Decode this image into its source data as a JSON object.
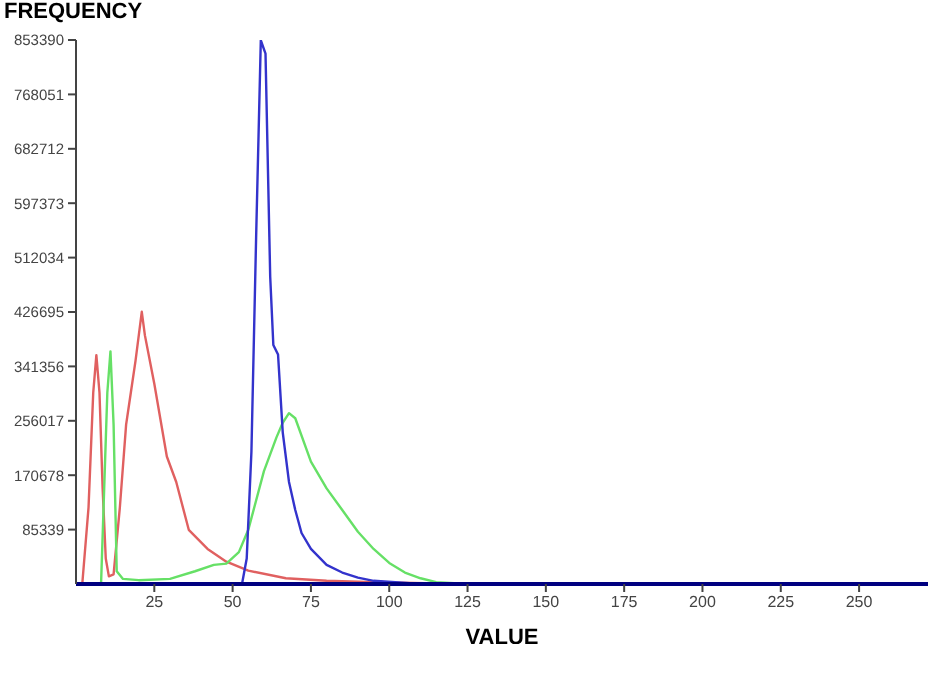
{
  "chart_data": {
    "type": "line",
    "ylabel": "FREQUENCY",
    "xlabel": "VALUE",
    "xlim": [
      0,
      272
    ],
    "xticks": [
      25,
      50,
      75,
      100,
      125,
      150,
      175,
      200,
      225,
      250
    ],
    "ylim": [
      0,
      853390
    ],
    "yticks": [
      85339,
      170678,
      256017,
      341356,
      426695,
      512034,
      597373,
      682712,
      768051,
      853390
    ],
    "grid": false,
    "series": [
      {
        "color": "#e06060",
        "x": [
          2,
          4,
          5.5,
          6.5,
          7.5,
          8.5,
          9.5,
          10.5,
          12,
          14,
          16,
          17.5,
          19,
          21,
          22,
          25,
          29,
          32,
          36,
          42,
          48,
          55,
          67,
          80,
          95,
          104,
          122
        ],
        "values": [
          0,
          120000,
          300000,
          359000,
          300000,
          150000,
          40000,
          12000,
          15000,
          120000,
          250000,
          300000,
          350000,
          427000,
          390000,
          314000,
          200000,
          160000,
          85000,
          55000,
          35000,
          21000,
          9000,
          5000,
          3000,
          2000,
          0
        ]
      },
      {
        "color": "#66e066",
        "x": [
          8,
          9,
          10,
          11,
          12,
          13,
          15,
          20,
          30,
          38,
          44,
          48,
          52,
          55,
          60,
          64,
          66,
          68,
          70,
          75,
          80,
          85,
          90,
          95,
          100,
          105,
          110,
          115,
          125
        ],
        "values": [
          0,
          150000,
          300000,
          365000,
          250000,
          20000,
          8000,
          6000,
          8000,
          20000,
          30000,
          32000,
          50000,
          85000,
          177000,
          230000,
          253000,
          268000,
          260000,
          192000,
          150000,
          116000,
          82000,
          55000,
          33000,
          18000,
          9000,
          3000,
          0
        ]
      },
      {
        "color": "#3333cc",
        "x": [
          53,
          54.5,
          56,
          57.5,
          59,
          60.5,
          62,
          63,
          64.5,
          66,
          68,
          70,
          72,
          75,
          80,
          85,
          90,
          95,
          110,
          272
        ],
        "values": [
          0,
          40000,
          207000,
          543000,
          853000,
          832000,
          482000,
          375000,
          360000,
          238000,
          160000,
          116000,
          80000,
          55000,
          30000,
          18000,
          10000,
          5000,
          0,
          0
        ]
      }
    ]
  }
}
